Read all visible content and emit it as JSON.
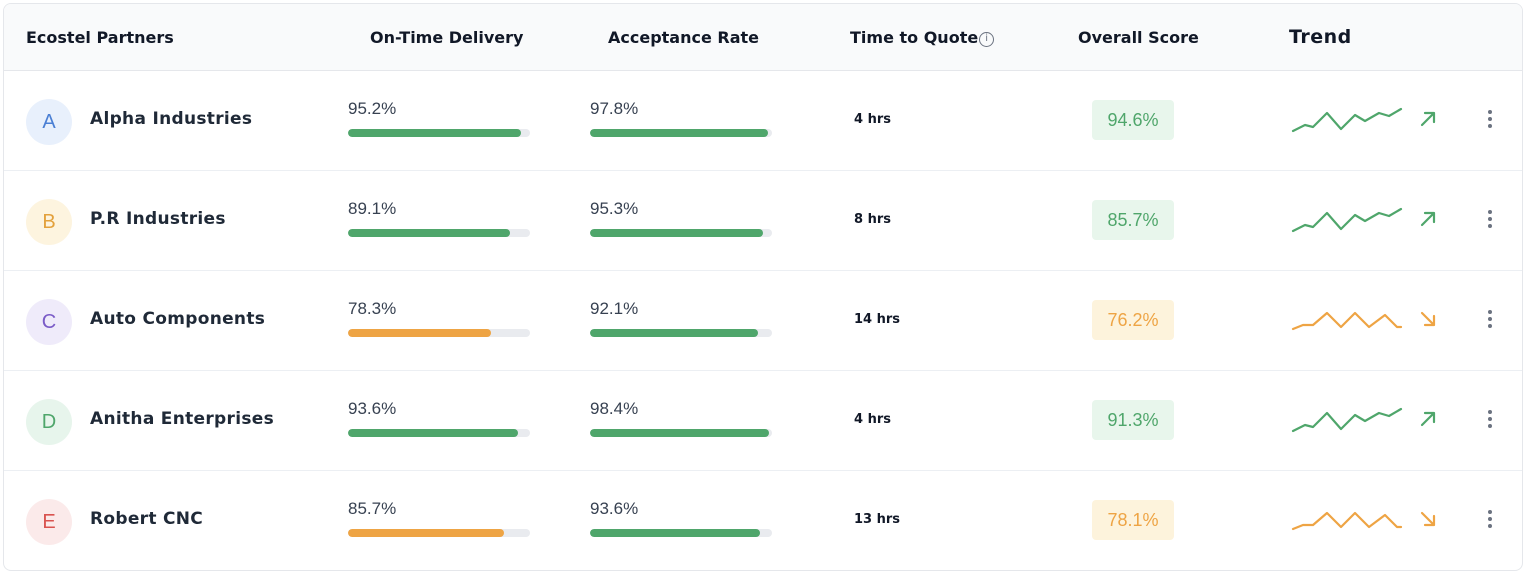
{
  "header": {
    "partners": "Ecostel Partners",
    "on_time": "On-Time Delivery",
    "acceptance": "Acceptance Rate",
    "time_to_quote": "Time to Quote",
    "info_icon": "info-icon",
    "overall": "Overall Score",
    "trend": "Trend"
  },
  "colors": {
    "good": "#4fa66b",
    "warn": "#eea444",
    "good_bg": "#e8f6ec",
    "warn_bg": "#fdf3dc"
  },
  "partners": [
    {
      "initial": "A",
      "name": "Alpha Industries",
      "avatar_bg": "#e8f0fc",
      "avatar_fg": "#4a7fd4",
      "on_time": "95.2%",
      "on_time_value": 95.2,
      "on_time_status": "good",
      "acceptance": "97.8%",
      "acceptance_value": 97.8,
      "ttq": "4 hrs",
      "score": "94.6%",
      "status": "good",
      "trend": "up"
    },
    {
      "initial": "B",
      "name": "P.R Industries",
      "avatar_bg": "#fdf4df",
      "avatar_fg": "#e3a13c",
      "on_time": "89.1%",
      "on_time_value": 89.1,
      "on_time_status": "good",
      "acceptance": "95.3%",
      "acceptance_value": 95.3,
      "ttq": "8 hrs",
      "score": "85.7%",
      "status": "good",
      "trend": "up"
    },
    {
      "initial": "C",
      "name": "Auto Components",
      "avatar_bg": "#efebfa",
      "avatar_fg": "#7a5bc7",
      "on_time": "78.3%",
      "on_time_value": 78.3,
      "on_time_status": "warn",
      "acceptance": "92.1%",
      "acceptance_value": 92.1,
      "ttq": "14 hrs",
      "score": "76.2%",
      "status": "warn",
      "trend": "down"
    },
    {
      "initial": "D",
      "name": "Anitha Enterprises",
      "avatar_bg": "#e7f5ec",
      "avatar_fg": "#4fa66b",
      "on_time": "93.6%",
      "on_time_value": 93.6,
      "on_time_status": "good",
      "acceptance": "98.4%",
      "acceptance_value": 98.4,
      "ttq": "4 hrs",
      "score": "91.3%",
      "status": "good",
      "trend": "up"
    },
    {
      "initial": "E",
      "name": "Robert CNC",
      "avatar_bg": "#fbeaea",
      "avatar_fg": "#d9534f",
      "on_time": "85.7%",
      "on_time_value": 85.7,
      "on_time_status": "warn",
      "acceptance": "93.6%",
      "acceptance_value": 93.6,
      "ttq": "13 hrs",
      "score": "78.1%",
      "status": "warn",
      "trend": "down"
    }
  ]
}
